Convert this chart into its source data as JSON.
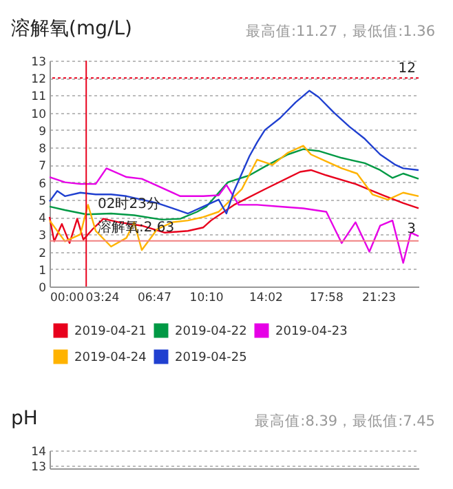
{
  "chart_data": [
    {
      "type": "line",
      "title": "溶解氧(mg/L)",
      "subtitle": "最高值:11.27，最低值:1.36",
      "xlim": [
        0,
        24
      ],
      "xticks": [
        {
          "value": 0,
          "label": "00:00"
        },
        {
          "value": 3.4,
          "label": "03:24"
        },
        {
          "value": 6.783,
          "label": "06:47"
        },
        {
          "value": 10.167,
          "label": "10:10"
        },
        {
          "value": 14.033,
          "label": "14:02"
        },
        {
          "value": 17.967,
          "label": "17:58"
        },
        {
          "value": 21.383,
          "label": "21:23"
        }
      ],
      "ylim": [
        0,
        13
      ],
      "yticks": [
        0,
        1,
        2,
        3,
        4,
        5,
        6,
        7,
        8,
        9,
        10,
        11,
        12,
        13
      ],
      "grid": "y",
      "legend": "bottom",
      "line_style": "solid",
      "marker": "none",
      "series": [
        {
          "name": "2019-04-21",
          "color": "#e8001c",
          "x": [
            0,
            0.3,
            0.8,
            1.3,
            1.8,
            2.2,
            2.8,
            3.5,
            4.5,
            6,
            7.5,
            9,
            10,
            10.5,
            12,
            14,
            16.3,
            17,
            18,
            19.9,
            21.7,
            23,
            24
          ],
          "values": [
            4.0,
            2.6,
            3.6,
            2.5,
            3.9,
            2.7,
            3.3,
            3.9,
            3.7,
            3.5,
            3.1,
            3.2,
            3.4,
            3.8,
            4.7,
            5.6,
            6.6,
            6.7,
            6.4,
            5.9,
            5.25,
            4.8,
            4.5
          ]
        },
        {
          "name": "2019-04-22",
          "color": "#009944",
          "x": [
            0,
            1,
            2.4,
            4,
            5.5,
            7.3,
            8.5,
            9.6,
            10.2,
            11.6,
            13,
            14.1,
            15.5,
            16.5,
            17.5,
            19,
            20.5,
            21.5,
            22.3,
            23,
            24
          ],
          "values": [
            4.6,
            4.4,
            4.15,
            4.2,
            4.1,
            3.85,
            3.9,
            4.3,
            4.6,
            6.0,
            6.4,
            6.95,
            7.6,
            7.9,
            7.8,
            7.4,
            7.1,
            6.7,
            6.25,
            6.5,
            6.2
          ]
        },
        {
          "name": "2019-04-23",
          "color": "#e600e6",
          "x": [
            0,
            1,
            2,
            3,
            3.7,
            5,
            6,
            7,
            8.5,
            10,
            11,
            11.5,
            12.3,
            13.5,
            15,
            16.5,
            18,
            19,
            19.9,
            20.8,
            21.5,
            22.3,
            23,
            23.5,
            24
          ],
          "values": [
            6.3,
            6.0,
            5.9,
            5.9,
            6.8,
            6.3,
            6.2,
            5.8,
            5.2,
            5.2,
            5.25,
            5.85,
            4.7,
            4.7,
            4.6,
            4.5,
            4.3,
            2.5,
            3.7,
            2.0,
            3.5,
            3.8,
            1.36,
            3.1,
            2.9
          ]
        },
        {
          "name": "2019-04-24",
          "color": "#ffb300",
          "x": [
            0,
            1,
            2,
            2.5,
            3,
            4,
            5,
            5.5,
            6,
            7,
            8,
            9,
            10,
            11,
            11.8,
            12.5,
            13.5,
            14.5,
            15.5,
            16.5,
            17,
            18,
            19,
            20,
            21,
            22,
            23,
            24
          ],
          "values": [
            3.8,
            2.6,
            3.0,
            4.7,
            3.2,
            2.3,
            2.8,
            3.7,
            2.1,
            3.3,
            3.7,
            3.8,
            4.0,
            4.3,
            5.0,
            5.6,
            7.3,
            7.0,
            7.7,
            8.1,
            7.6,
            7.2,
            6.8,
            6.5,
            5.3,
            5.0,
            5.4,
            5.2
          ]
        },
        {
          "name": "2019-04-25",
          "color": "#2040d0",
          "x": [
            0,
            0.5,
            1,
            2,
            3,
            4,
            5,
            6,
            7,
            8,
            9,
            10,
            11,
            11.5,
            12,
            12.5,
            13,
            13.5,
            14,
            15,
            16,
            16.9,
            17.5,
            18.5,
            19.5,
            20.5,
            21.5,
            22.5,
            23,
            24
          ],
          "values": [
            4.9,
            5.5,
            5.2,
            5.4,
            5.3,
            5.3,
            5.2,
            5.0,
            4.8,
            4.5,
            4.2,
            4.6,
            5.0,
            4.2,
            5.5,
            6.5,
            7.5,
            8.3,
            9.0,
            9.7,
            10.6,
            11.27,
            10.9,
            10.0,
            9.2,
            8.5,
            7.6,
            7.0,
            6.8,
            6.7
          ]
        }
      ],
      "ref_lines": [
        {
          "axis": "y",
          "value": 12,
          "label": "12",
          "color": "#e8001c",
          "line_style": "dotted"
        },
        {
          "axis": "y",
          "value": 2.63,
          "color": "#f08080",
          "line_style": "solid"
        },
        {
          "axis": "x",
          "value": 2.383,
          "color": "#e8001c",
          "line_style": "solid"
        }
      ],
      "annotations": [
        "02时23分",
        "溶解氧:2.63",
        "3"
      ]
    },
    {
      "type": "line",
      "title": "pH",
      "subtitle": "最高值:8.39，最低值:7.45",
      "xlim": [
        0,
        24
      ],
      "ylim": [
        12.8,
        14
      ],
      "yticks": [
        13,
        14
      ],
      "grid": "y",
      "tick_labels": "y"
    }
  ]
}
